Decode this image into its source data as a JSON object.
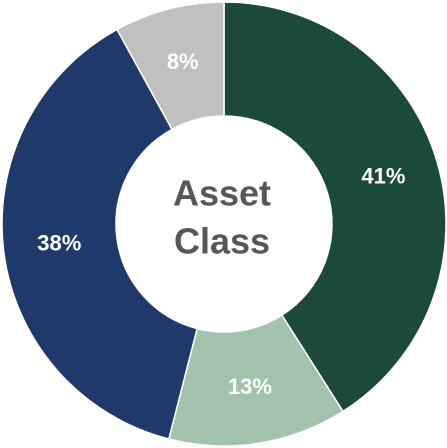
{
  "chart_data": {
    "type": "donut",
    "center_label": [
      "Asset",
      "Class"
    ],
    "categories": [
      null,
      null,
      null,
      null
    ],
    "values": [
      41,
      13,
      38,
      8
    ],
    "value_labels": [
      "41%",
      "13%",
      "38%",
      "8%"
    ],
    "colors": [
      "#1c4a3a",
      "#a2c2ab",
      "#1f3a6a",
      "#c0c0c0"
    ]
  }
}
